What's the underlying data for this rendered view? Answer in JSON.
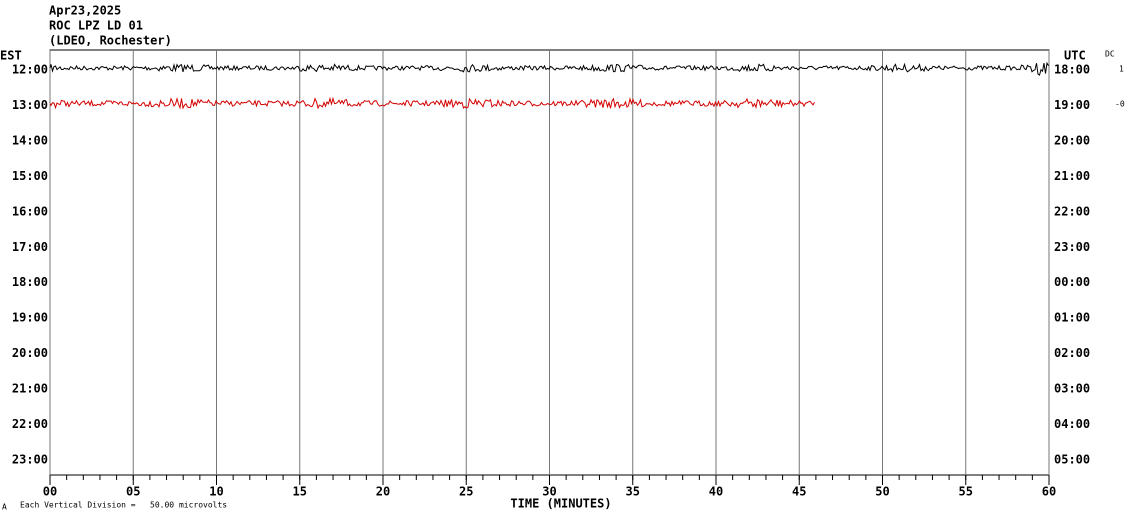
{
  "chart_data": {
    "type": "helicorder",
    "title_lines": [
      "Apr23,2025",
      "ROC LPZ LD 01",
      "(LDEO, Rochester)"
    ],
    "left_axis_label": "EST",
    "right_axis_label": "UTC",
    "scale_label": "DC",
    "scale_values": [
      "1",
      "-0"
    ],
    "xlabel": "TIME (MINUTES)",
    "footnote_mark": "A",
    "footnote": "Each Vertical Division =   50.00 microvolts",
    "xlim": [
      0,
      60
    ],
    "xticks": [
      {
        "value": 0,
        "label": "00"
      },
      {
        "value": 5,
        "label": "05"
      },
      10,
      15,
      20,
      25,
      30,
      35,
      40,
      45,
      50,
      55,
      60
    ],
    "grid": true,
    "rows": [
      {
        "est": "12:00",
        "utc": "18:00",
        "trace": {
          "color": "#000000",
          "end": 60
        }
      },
      {
        "est": "13:00",
        "utc": "19:00",
        "trace": {
          "color": "#d40000",
          "end": 46
        }
      },
      {
        "est": "14:00",
        "utc": "20:00"
      },
      {
        "est": "15:00",
        "utc": "21:00"
      },
      {
        "est": "16:00",
        "utc": "22:00"
      },
      {
        "est": "17:00",
        "utc": "23:00"
      },
      {
        "est": "18:00",
        "utc": "00:00"
      },
      {
        "est": "19:00",
        "utc": "01:00"
      },
      {
        "est": "20:00",
        "utc": "02:00"
      },
      {
        "est": "21:00",
        "utc": "03:00"
      },
      {
        "est": "22:00",
        "utc": "04:00"
      },
      {
        "est": "23:00",
        "utc": "05:00"
      }
    ]
  }
}
